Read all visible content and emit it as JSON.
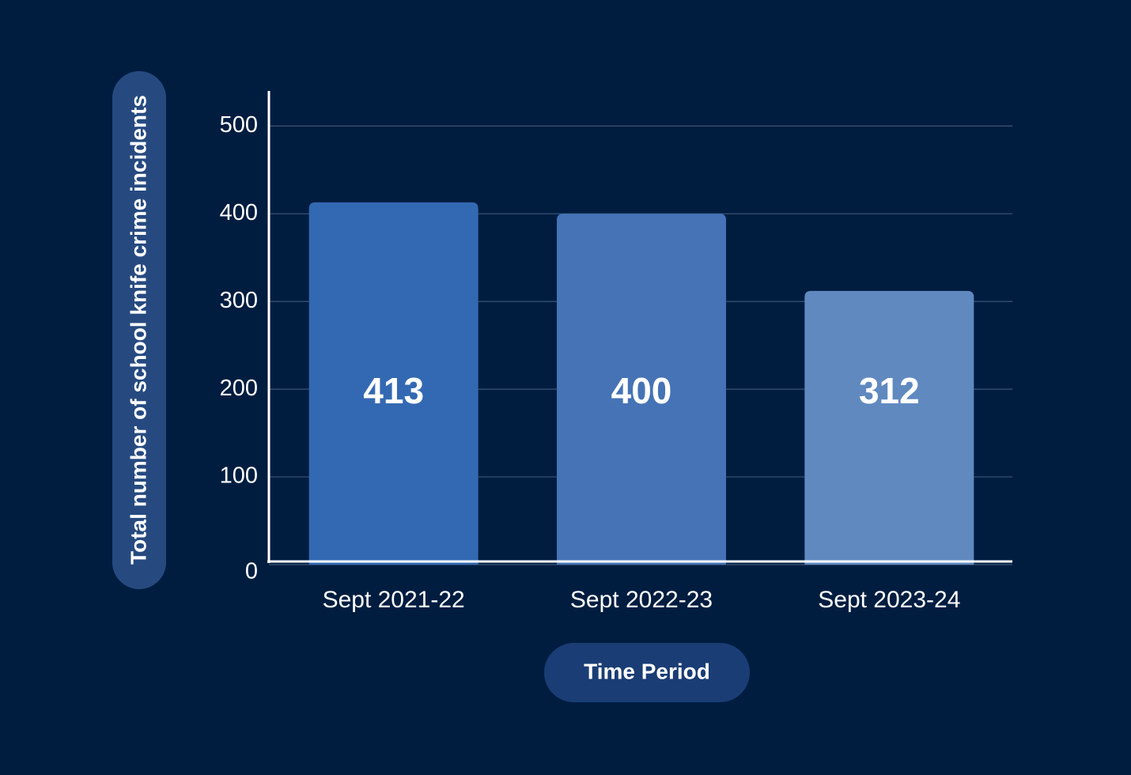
{
  "chart_data": {
    "type": "bar",
    "categories": [
      "Sept 2021-22",
      "Sept 2022-23",
      "Sept 2023-24"
    ],
    "values": [
      413,
      400,
      312
    ],
    "colors": [
      "#3369b2",
      "#4573b5",
      "#6089c0"
    ],
    "ylim": [
      0,
      540
    ],
    "yticks": [
      0,
      100,
      200,
      300,
      400,
      500
    ],
    "grid": true,
    "ylabel": "Total number of school knife crime incidents",
    "xlabel": "Time Period"
  }
}
